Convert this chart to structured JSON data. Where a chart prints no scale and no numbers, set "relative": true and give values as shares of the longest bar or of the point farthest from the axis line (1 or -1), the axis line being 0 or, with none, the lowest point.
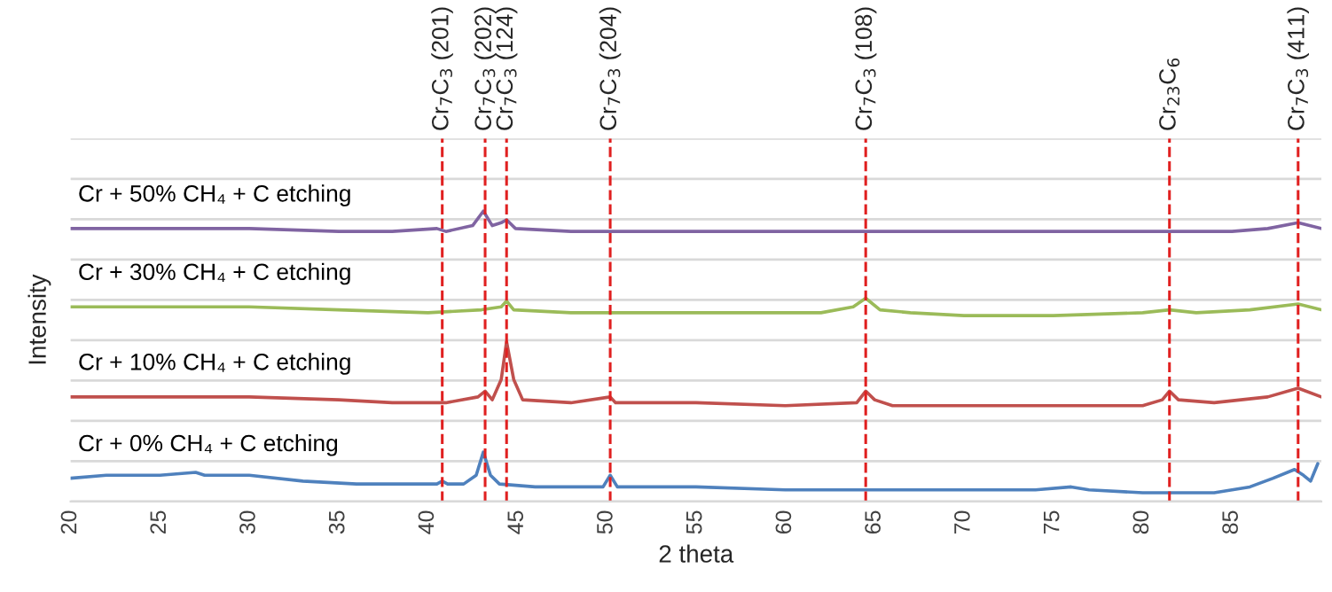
{
  "chart_data": {
    "type": "line",
    "xlabel": "2 theta",
    "ylabel": "Intensity",
    "relative": true,
    "grid": "y",
    "line_style": "solid",
    "xlim": [
      20,
      90
    ],
    "xticks": [
      20,
      25,
      30,
      35,
      40,
      45,
      50,
      55,
      60,
      65,
      70,
      75,
      80,
      85
    ],
    "series": [
      {
        "name": "Cr + 0% CH₄ + C etching",
        "color": "#4f81bd",
        "x": [
          20,
          22,
          25,
          27,
          27.5,
          30,
          33,
          36,
          39,
          40.5,
          40.8,
          41.1,
          42,
          42.7,
          43.1,
          43.5,
          44,
          46,
          49.8,
          50.2,
          50.6,
          55,
          60,
          65,
          70,
          73,
          74,
          76,
          77,
          80,
          84,
          86,
          87.3,
          88.5,
          89,
          89.4,
          89.8
        ],
        "values": [
          0.08,
          0.09,
          0.09,
          0.1,
          0.09,
          0.09,
          0.07,
          0.06,
          0.06,
          0.06,
          0.07,
          0.06,
          0.06,
          0.09,
          0.17,
          0.09,
          0.06,
          0.05,
          0.05,
          0.09,
          0.05,
          0.05,
          0.04,
          0.04,
          0.04,
          0.04,
          0.04,
          0.05,
          0.04,
          0.03,
          0.03,
          0.05,
          0.08,
          0.11,
          0.09,
          0.07,
          0.13
        ]
      },
      {
        "name": "Cr + 10% CH₄ + C etching",
        "color": "#c0504d",
        "x": [
          20,
          25,
          30,
          35,
          38,
          41,
          42.8,
          43.2,
          43.6,
          44.1,
          44.4,
          44.8,
          45.3,
          48,
          50.2,
          50.5,
          55,
          60,
          64,
          64.5,
          65,
          66,
          70,
          75,
          80,
          81.1,
          81.5,
          82,
          84,
          87,
          88.7,
          90
        ],
        "values": [
          0.36,
          0.36,
          0.36,
          0.35,
          0.34,
          0.34,
          0.36,
          0.38,
          0.35,
          0.42,
          0.55,
          0.42,
          0.35,
          0.34,
          0.36,
          0.34,
          0.34,
          0.33,
          0.34,
          0.38,
          0.35,
          0.33,
          0.33,
          0.33,
          0.33,
          0.35,
          0.38,
          0.35,
          0.34,
          0.36,
          0.39,
          0.36
        ]
      },
      {
        "name": "Cr + 30% CH₄ + C etching",
        "color": "#9bbb59",
        "x": [
          20,
          25,
          30,
          35,
          40,
          43,
          44.1,
          44.4,
          44.8,
          48,
          55,
          62,
          63.8,
          64.5,
          65.3,
          67,
          70,
          75,
          80,
          81.5,
          83,
          86,
          88.7,
          90
        ],
        "values": [
          0.67,
          0.67,
          0.67,
          0.66,
          0.65,
          0.66,
          0.67,
          0.69,
          0.66,
          0.65,
          0.65,
          0.65,
          0.67,
          0.7,
          0.66,
          0.65,
          0.64,
          0.64,
          0.65,
          0.66,
          0.65,
          0.66,
          0.68,
          0.66
        ]
      },
      {
        "name": "Cr + 50% CH₄ + C etching",
        "color": "#8064a2",
        "x": [
          20,
          25,
          30,
          35,
          38,
          40.5,
          41,
          42.5,
          43.1,
          43.6,
          44.1,
          44.4,
          44.9,
          48,
          55,
          60,
          70,
          80,
          85,
          87,
          88.7,
          90
        ],
        "values": [
          0.94,
          0.94,
          0.94,
          0.93,
          0.93,
          0.94,
          0.93,
          0.95,
          1.0,
          0.95,
          0.96,
          0.97,
          0.94,
          0.93,
          0.93,
          0.93,
          0.93,
          0.93,
          0.93,
          0.94,
          0.96,
          0.94
        ]
      }
    ],
    "ref_lines": [
      {
        "axis": "x",
        "value": 40.8,
        "label": "Cr$_{7}$C$_{3}$ (201)",
        "color": "#e02020",
        "line_style": "dashed"
      },
      {
        "axis": "x",
        "value": 43.2,
        "label": "Cr$_{7}$C$_{3}$ (202)",
        "color": "#e02020",
        "line_style": "dashed"
      },
      {
        "axis": "x",
        "value": 44.4,
        "label": "Cr$_{7}$C$_{3}$ (124)",
        "color": "#e02020",
        "line_style": "dashed"
      },
      {
        "axis": "x",
        "value": 50.2,
        "label": "Cr$_{7}$C$_{3}$ (204)",
        "color": "#e02020",
        "line_style": "dashed"
      },
      {
        "axis": "x",
        "value": 64.5,
        "label": "Cr$_{7}$C$_{3}$ (108)",
        "color": "#e02020",
        "line_style": "dashed"
      },
      {
        "axis": "x",
        "value": 81.5,
        "label": "Cr$_{23}$C$_{6}$",
        "color": "#e02020",
        "line_style": "dashed"
      },
      {
        "axis": "x",
        "value": 88.7,
        "label": "Cr$_{7}$C$_{3}$ (411)",
        "color": "#e02020",
        "line_style": "dashed"
      }
    ]
  }
}
